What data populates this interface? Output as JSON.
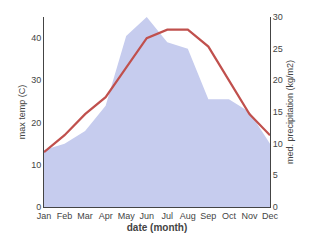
{
  "chart_data": {
    "type": "line",
    "categories": [
      "Jan",
      "Feb",
      "Mar",
      "Apr",
      "May",
      "Jun",
      "Jul",
      "Aug",
      "Sep",
      "Oct",
      "Nov",
      "Dec"
    ],
    "series": [
      {
        "type": "area",
        "axis": "y2",
        "color": "#c6ccee",
        "values": [
          9,
          10,
          12,
          16,
          27,
          30,
          26,
          25,
          17,
          17,
          15,
          10
        ]
      },
      {
        "type": "line",
        "color": "#c0504d",
        "values": [
          13,
          17,
          22,
          26,
          33,
          40,
          42,
          42,
          38,
          30,
          22,
          17
        ]
      }
    ],
    "xlabel": "date (month)",
    "ylabel": "max temp (C)",
    "y2label": "med. precipitation (kg/m2)",
    "ylim": [
      0,
      45
    ],
    "yticks": [
      0,
      10,
      20,
      30,
      40
    ],
    "y2lim": [
      0,
      30
    ],
    "y2ticks": [
      0,
      5,
      10,
      15,
      20,
      25,
      30
    ],
    "grid": false
  }
}
